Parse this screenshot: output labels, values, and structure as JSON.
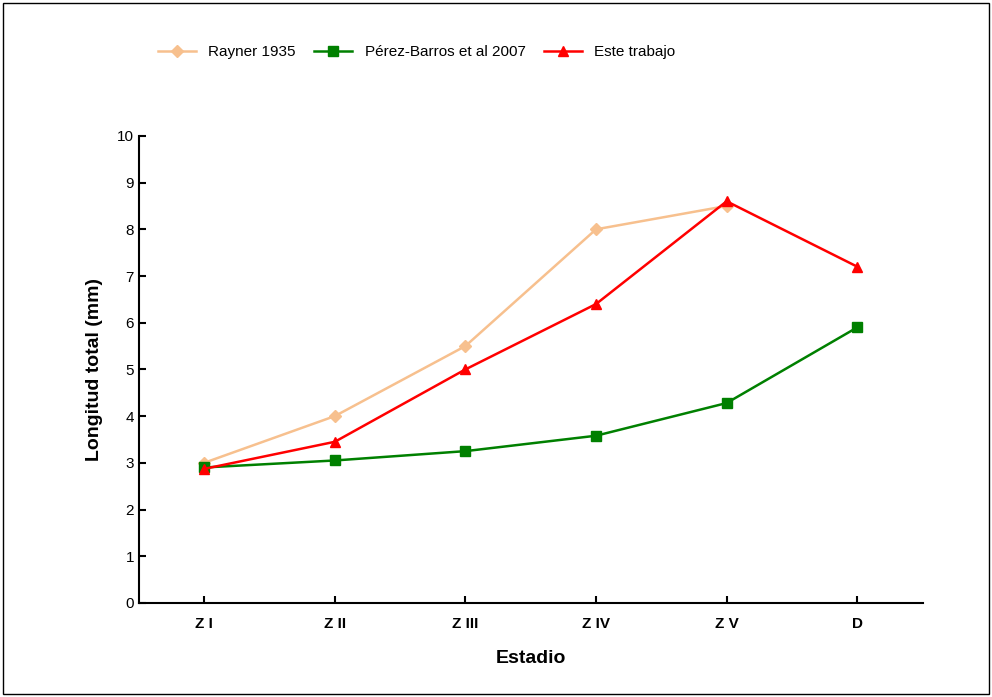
{
  "chart_data": {
    "type": "line",
    "x_label": "Estadio",
    "y_label": "Longitud total (mm)",
    "categories": [
      "Z I",
      "Z II",
      "Z III",
      "Z IV",
      "Z V",
      "D"
    ],
    "series": [
      {
        "name": "Rayner 1935",
        "color": "#f7c08e",
        "marker": "diamond",
        "values": [
          3.0,
          4.0,
          5.5,
          8.0,
          8.5,
          null
        ]
      },
      {
        "name": "Pérez-Barros et al 2007",
        "color": "#008000",
        "marker": "square",
        "values": [
          2.9,
          3.05,
          3.25,
          3.58,
          4.28,
          5.9
        ]
      },
      {
        "name": "Este trabajo",
        "color": "#ff0000",
        "marker": "triangle",
        "values": [
          2.87,
          3.45,
          5.0,
          6.4,
          8.6,
          7.2
        ]
      }
    ],
    "ylim": [
      0,
      10
    ],
    "yticks": [
      0,
      1,
      2,
      3,
      4,
      5,
      6,
      7,
      8,
      9,
      10
    ],
    "grid": false,
    "legend": "upper center"
  }
}
